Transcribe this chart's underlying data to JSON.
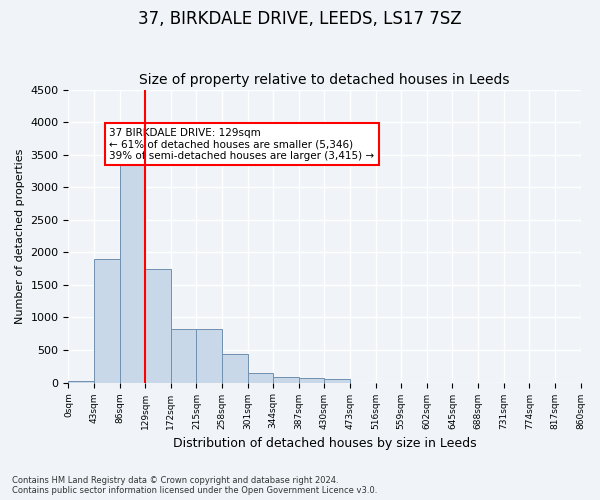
{
  "title": "37, BIRKDALE DRIVE, LEEDS, LS17 7SZ",
  "subtitle": "Size of property relative to detached houses in Leeds",
  "xlabel": "Distribution of detached houses by size in Leeds",
  "ylabel": "Number of detached properties",
  "footnote": "Contains HM Land Registry data © Crown copyright and database right 2024.\nContains public sector information licensed under the Open Government Licence v3.0.",
  "bin_labels": [
    "0sqm",
    "43sqm",
    "86sqm",
    "129sqm",
    "172sqm",
    "215sqm",
    "258sqm",
    "301sqm",
    "344sqm",
    "387sqm",
    "430sqm",
    "473sqm",
    "516sqm",
    "559sqm",
    "602sqm",
    "645sqm",
    "688sqm",
    "731sqm",
    "774sqm",
    "817sqm",
    "860sqm"
  ],
  "bar_values": [
    20,
    1900,
    3500,
    1750,
    820,
    820,
    440,
    150,
    90,
    70,
    55,
    0,
    0,
    0,
    0,
    0,
    0,
    0,
    0,
    0
  ],
  "bar_color": "#c8d8e8",
  "bar_edge_color": "#7090b0",
  "vline_x": 3,
  "vline_color": "red",
  "annotation_text": "37 BIRKDALE DRIVE: 129sqm\n← 61% of detached houses are smaller (5,346)\n39% of semi-detached houses are larger (3,415) →",
  "annotation_box_color": "white",
  "annotation_box_edge": "red",
  "ylim": [
    0,
    4500
  ],
  "yticks": [
    0,
    500,
    1000,
    1500,
    2000,
    2500,
    3000,
    3500,
    4000,
    4500
  ],
  "background_color": "#f0f4f8",
  "grid_color": "white",
  "title_fontsize": 12,
  "subtitle_fontsize": 10
}
